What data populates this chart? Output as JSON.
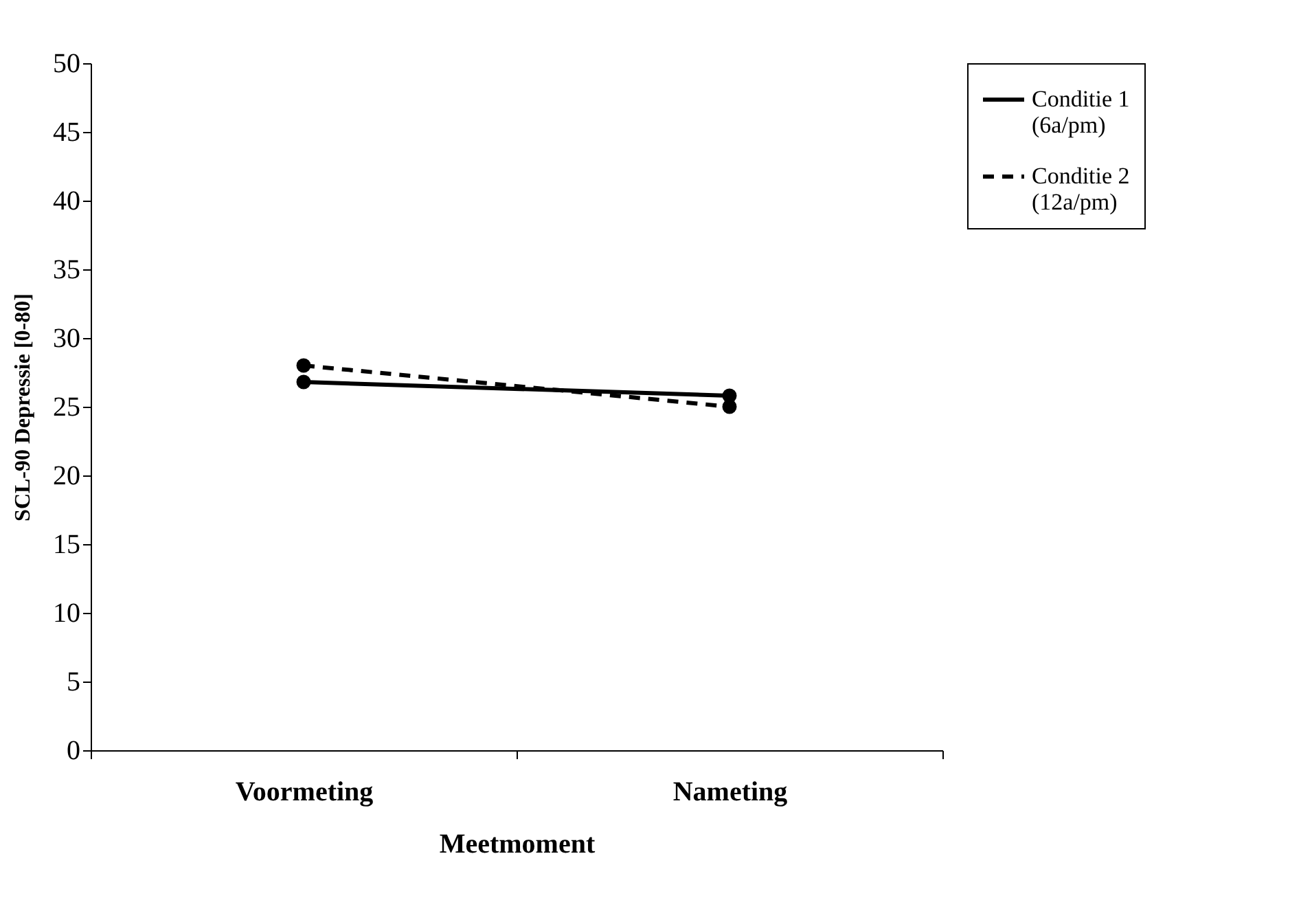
{
  "chart_data": {
    "type": "line",
    "xlabel": "Meetmoment",
    "ylabel": "SCL-90 Depressie [0-80]",
    "categories": [
      "Voormeting",
      "Nameting"
    ],
    "series": [
      {
        "name": "Conditie 1 (6a/pm)",
        "color": "#000000",
        "line_style": "solid",
        "values": [
          26.8,
          25.8
        ]
      },
      {
        "name": "Conditie 2 (12a/pm)",
        "color": "#000000",
        "line_style": "dashed",
        "values": [
          28.0,
          25.0
        ]
      }
    ],
    "ylim": [
      0,
      50
    ],
    "yticks": [
      0,
      5,
      10,
      15,
      20,
      25,
      30,
      35,
      40,
      45,
      50
    ],
    "grid": false,
    "legend": "right",
    "marker": "circle"
  }
}
